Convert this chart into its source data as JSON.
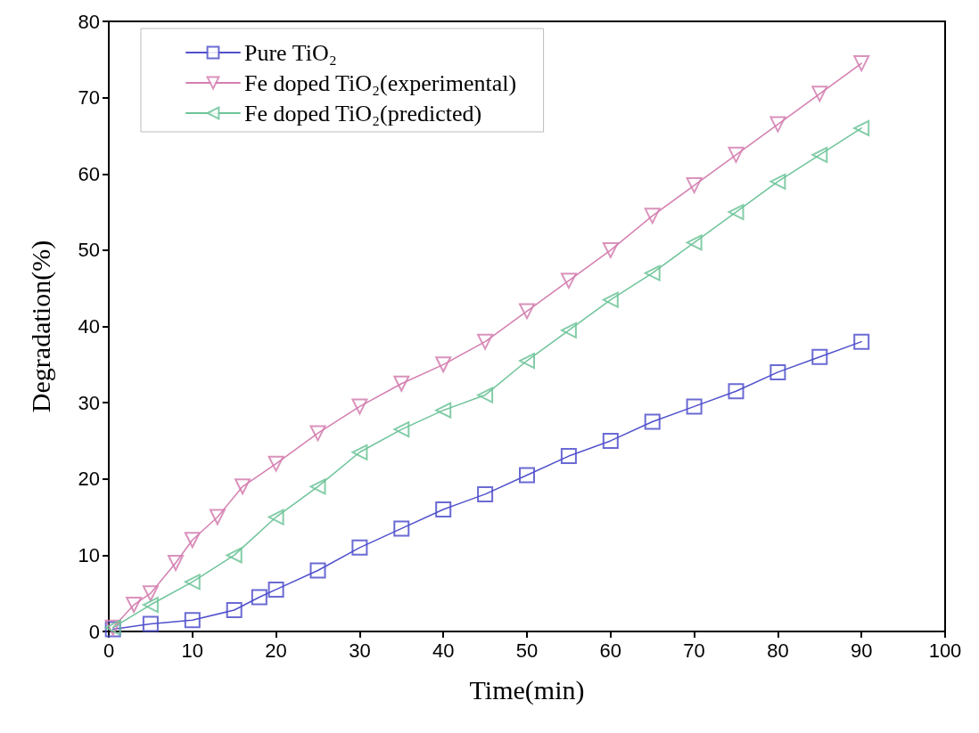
{
  "chart_data": {
    "type": "line",
    "xlabel": "Time(min)",
    "ylabel": "Degradation(%)",
    "xlim": [
      0,
      100
    ],
    "xticks": [
      0,
      10,
      20,
      30,
      40,
      50,
      60,
      70,
      80,
      90,
      100
    ],
    "ylim": [
      0,
      80
    ],
    "yticks": [
      0,
      10,
      20,
      30,
      40,
      50,
      60,
      70,
      80
    ],
    "grid": false,
    "legend": "top left",
    "series": [
      {
        "name": "Pure TiO₂",
        "color": "#5050cc",
        "marker": "square",
        "x": [
          0.5,
          5,
          10,
          15,
          18,
          20,
          25,
          30,
          35,
          40,
          45,
          50,
          55,
          60,
          65,
          70,
          75,
          80,
          85,
          90
        ],
        "values": [
          0.3,
          1,
          1.5,
          2.8,
          4.5,
          5.5,
          8,
          11,
          13.5,
          16,
          18,
          20.5,
          23,
          25,
          27.5,
          29.5,
          31.5,
          34,
          36,
          38
        ]
      },
      {
        "name": "Fe doped TiO₂(experimental)",
        "color": "#d47fb0",
        "marker": "triangle-down",
        "x": [
          0.5,
          3,
          5,
          8,
          10,
          13,
          16,
          20,
          25,
          30,
          35,
          40,
          45,
          50,
          55,
          60,
          65,
          70,
          75,
          80,
          85,
          90
        ],
        "values": [
          0.5,
          3.5,
          5,
          9,
          12,
          15,
          19,
          22,
          26,
          29.5,
          32.5,
          35,
          38,
          42,
          46,
          50,
          54.5,
          58.5,
          62.5,
          66.5,
          70.5,
          74.5
        ]
      },
      {
        "name": "Fe doped TiO₂(predicted)",
        "color": "#6fc49a",
        "marker": "triangle-left",
        "x": [
          0.5,
          5,
          10,
          15,
          20,
          25,
          30,
          35,
          40,
          45,
          50,
          55,
          60,
          65,
          70,
          75,
          80,
          85,
          90
        ],
        "values": [
          0.5,
          3.5,
          6.5,
          10,
          15,
          19,
          23.5,
          26.5,
          29,
          31,
          35.5,
          39.5,
          43.5,
          47,
          51,
          55,
          59,
          62.5,
          66
        ]
      }
    ]
  }
}
